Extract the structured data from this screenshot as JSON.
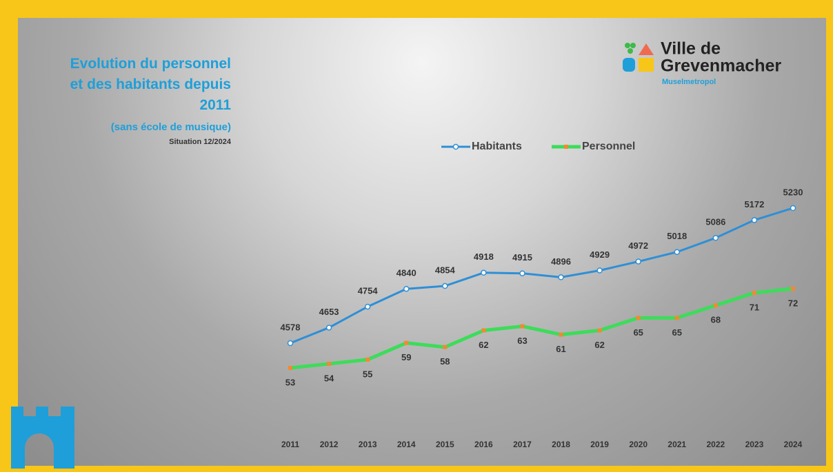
{
  "logo": {
    "line1": "Ville de",
    "line2": "Grevenmacher",
    "tagline": "Muselmetropol"
  },
  "chart_data": {
    "type": "line",
    "title": "Evolution du personnel et des habitants depuis 2011",
    "subtitle": "(sans école de musique)",
    "note": "Situation 12/2024",
    "categories": [
      "2011",
      "2012",
      "2013",
      "2014",
      "2015",
      "2016",
      "2017",
      "2018",
      "2019",
      "2020",
      "2021",
      "2022",
      "2023",
      "2024"
    ],
    "legend": "top",
    "series": [
      {
        "name": "Habitants",
        "color": "#2e8fd6",
        "marker_color": "#ffffff",
        "values": [
          4578,
          4653,
          4754,
          4840,
          4854,
          4918,
          4915,
          4896,
          4929,
          4972,
          5018,
          5086,
          5172,
          5230
        ]
      },
      {
        "name": "Personnel",
        "color": "#3ddc5a",
        "marker_color": "#f08a30",
        "values": [
          53,
          54,
          55,
          59,
          58,
          62,
          63,
          61,
          62,
          65,
          65,
          68,
          71,
          72
        ]
      }
    ]
  }
}
